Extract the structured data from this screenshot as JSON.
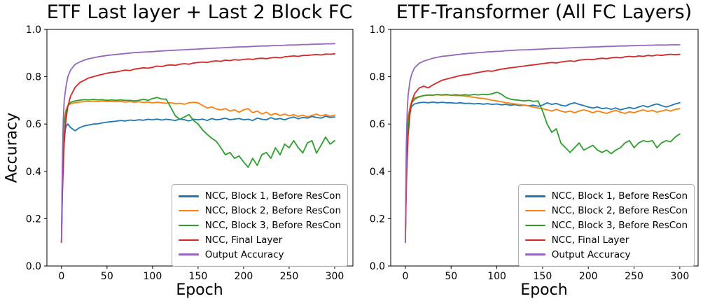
{
  "figure_title": "",
  "chart_data": [
    {
      "type": "line",
      "title": "ETF Last layer + Last 2 Block FC",
      "xlabel": "Epoch",
      "ylabel": "Accuracy",
      "xlim": [
        -16,
        320
      ],
      "ylim": [
        0.0,
        1.0
      ],
      "xticks": [
        0,
        50,
        100,
        150,
        200,
        250,
        300
      ],
      "yticks": [
        0.0,
        0.2,
        0.4,
        0.6,
        0.8,
        1.0
      ],
      "grid": false,
      "legend_position": "lower right",
      "epochs": [
        0,
        1,
        2,
        3,
        5,
        7,
        10,
        15,
        20,
        25,
        30,
        35,
        40,
        45,
        50,
        55,
        60,
        65,
        70,
        75,
        80,
        85,
        90,
        95,
        100,
        105,
        110,
        115,
        120,
        125,
        130,
        135,
        140,
        145,
        150,
        155,
        160,
        165,
        170,
        175,
        180,
        185,
        190,
        195,
        200,
        205,
        210,
        215,
        220,
        225,
        230,
        235,
        240,
        245,
        250,
        255,
        260,
        265,
        270,
        275,
        280,
        285,
        290,
        295,
        300
      ],
      "series": [
        {
          "name": "NCC, Block 1, Before ResCon",
          "color": "#1f77b4",
          "values": [
            0.1,
            0.35,
            0.48,
            0.55,
            0.59,
            0.6,
            0.585,
            0.572,
            0.585,
            0.592,
            0.596,
            0.6,
            0.601,
            0.605,
            0.608,
            0.61,
            0.612,
            0.615,
            0.613,
            0.617,
            0.615,
            0.618,
            0.616,
            0.62,
            0.618,
            0.621,
            0.617,
            0.62,
            0.618,
            0.615,
            0.621,
            0.618,
            0.613,
            0.62,
            0.618,
            0.621,
            0.615,
            0.623,
            0.618,
            0.62,
            0.625,
            0.618,
            0.621,
            0.623,
            0.618,
            0.62,
            0.615,
            0.625,
            0.62,
            0.618,
            0.627,
            0.62,
            0.623,
            0.618,
            0.625,
            0.63,
            0.622,
            0.628,
            0.625,
            0.632,
            0.628,
            0.625,
            0.633,
            0.628,
            0.63
          ]
        },
        {
          "name": "NCC, Block 2, Before ResCon",
          "color": "#ff7f0e",
          "values": [
            0.1,
            0.4,
            0.55,
            0.62,
            0.66,
            0.678,
            0.686,
            0.69,
            0.693,
            0.695,
            0.695,
            0.697,
            0.695,
            0.697,
            0.695,
            0.696,
            0.694,
            0.696,
            0.693,
            0.695,
            0.692,
            0.694,
            0.691,
            0.693,
            0.69,
            0.692,
            0.69,
            0.688,
            0.69,
            0.686,
            0.688,
            0.684,
            0.69,
            0.692,
            0.69,
            0.678,
            0.668,
            0.672,
            0.664,
            0.66,
            0.665,
            0.655,
            0.66,
            0.65,
            0.66,
            0.665,
            0.648,
            0.655,
            0.643,
            0.65,
            0.638,
            0.645,
            0.636,
            0.642,
            0.635,
            0.64,
            0.632,
            0.638,
            0.63,
            0.637,
            0.642,
            0.634,
            0.64,
            0.633,
            0.638
          ]
        },
        {
          "name": "NCC, Block 3, Before ResCon",
          "color": "#2ca02c",
          "values": [
            0.1,
            0.38,
            0.52,
            0.6,
            0.65,
            0.675,
            0.692,
            0.698,
            0.701,
            0.703,
            0.702,
            0.704,
            0.702,
            0.703,
            0.7,
            0.702,
            0.7,
            0.702,
            0.7,
            0.7,
            0.698,
            0.7,
            0.705,
            0.7,
            0.708,
            0.712,
            0.706,
            0.705,
            0.67,
            0.635,
            0.62,
            0.63,
            0.64,
            0.615,
            0.6,
            0.575,
            0.556,
            0.54,
            0.527,
            0.5,
            0.47,
            0.48,
            0.455,
            0.465,
            0.44,
            0.417,
            0.455,
            0.425,
            0.47,
            0.48,
            0.455,
            0.5,
            0.47,
            0.515,
            0.5,
            0.53,
            0.5,
            0.478,
            0.52,
            0.53,
            0.477,
            0.51,
            0.545,
            0.515,
            0.53
          ]
        },
        {
          "name": "NCC, Final Layer",
          "color": "#d62728",
          "values": [
            0.1,
            0.3,
            0.42,
            0.52,
            0.62,
            0.675,
            0.718,
            0.755,
            0.775,
            0.785,
            0.795,
            0.8,
            0.806,
            0.81,
            0.815,
            0.818,
            0.82,
            0.824,
            0.828,
            0.826,
            0.832,
            0.835,
            0.838,
            0.836,
            0.84,
            0.845,
            0.843,
            0.848,
            0.85,
            0.848,
            0.853,
            0.855,
            0.853,
            0.858,
            0.86,
            0.862,
            0.86,
            0.865,
            0.867,
            0.865,
            0.87,
            0.868,
            0.872,
            0.87,
            0.873,
            0.875,
            0.873,
            0.877,
            0.878,
            0.876,
            0.88,
            0.882,
            0.88,
            0.884,
            0.886,
            0.888,
            0.886,
            0.89,
            0.89,
            0.892,
            0.894,
            0.892,
            0.896,
            0.895,
            0.897
          ]
        },
        {
          "name": "Output Accuracy",
          "color": "#9467bd",
          "values": [
            0.1,
            0.45,
            0.62,
            0.7,
            0.76,
            0.8,
            0.828,
            0.852,
            0.862,
            0.87,
            0.876,
            0.88,
            0.884,
            0.887,
            0.89,
            0.892,
            0.894,
            0.896,
            0.898,
            0.9,
            0.902,
            0.903,
            0.904,
            0.905,
            0.906,
            0.908,
            0.909,
            0.91,
            0.911,
            0.912,
            0.913,
            0.914,
            0.915,
            0.916,
            0.917,
            0.918,
            0.919,
            0.92,
            0.921,
            0.922,
            0.923,
            0.924,
            0.925,
            0.926,
            0.926,
            0.927,
            0.928,
            0.929,
            0.93,
            0.93,
            0.931,
            0.932,
            0.932,
            0.933,
            0.934,
            0.934,
            0.935,
            0.936,
            0.936,
            0.937,
            0.938,
            0.938,
            0.939,
            0.939,
            0.94
          ]
        }
      ]
    },
    {
      "type": "line",
      "title": "ETF-Transformer (All FC Layers)",
      "xlabel": "Epoch",
      "ylabel": "",
      "xlim": [
        -16,
        320
      ],
      "ylim": [
        0.0,
        1.0
      ],
      "xticks": [
        0,
        50,
        100,
        150,
        200,
        250,
        300
      ],
      "yticks": [
        0.0,
        0.2,
        0.4,
        0.6,
        0.8,
        1.0
      ],
      "grid": false,
      "legend_position": "lower right",
      "epochs": [
        0,
        1,
        2,
        3,
        5,
        7,
        10,
        15,
        20,
        25,
        30,
        35,
        40,
        45,
        50,
        55,
        60,
        65,
        70,
        75,
        80,
        85,
        90,
        95,
        100,
        105,
        110,
        115,
        120,
        125,
        130,
        135,
        140,
        145,
        150,
        155,
        160,
        165,
        170,
        175,
        180,
        185,
        190,
        195,
        200,
        205,
        210,
        215,
        220,
        225,
        230,
        235,
        240,
        245,
        250,
        255,
        260,
        265,
        270,
        275,
        280,
        285,
        290,
        295,
        300
      ],
      "series": [
        {
          "name": "NCC, Block 1, Before ResCon",
          "color": "#1f77b4",
          "values": [
            0.1,
            0.4,
            0.55,
            0.62,
            0.66,
            0.675,
            0.685,
            0.69,
            0.692,
            0.69,
            0.693,
            0.69,
            0.692,
            0.69,
            0.69,
            0.688,
            0.69,
            0.687,
            0.688,
            0.685,
            0.687,
            0.684,
            0.686,
            0.683,
            0.685,
            0.681,
            0.683,
            0.68,
            0.682,
            0.678,
            0.68,
            0.677,
            0.68,
            0.675,
            0.68,
            0.69,
            0.683,
            0.687,
            0.68,
            0.676,
            0.685,
            0.69,
            0.683,
            0.678,
            0.672,
            0.668,
            0.672,
            0.665,
            0.668,
            0.662,
            0.668,
            0.66,
            0.665,
            0.67,
            0.665,
            0.672,
            0.678,
            0.672,
            0.68,
            0.685,
            0.678,
            0.672,
            0.678,
            0.685,
            0.69
          ]
        },
        {
          "name": "NCC, Block 2, Before ResCon",
          "color": "#ff7f0e",
          "values": [
            0.1,
            0.42,
            0.56,
            0.63,
            0.67,
            0.698,
            0.71,
            0.716,
            0.72,
            0.722,
            0.722,
            0.724,
            0.722,
            0.723,
            0.722,
            0.72,
            0.72,
            0.718,
            0.716,
            0.713,
            0.71,
            0.708,
            0.705,
            0.7,
            0.698,
            0.694,
            0.69,
            0.688,
            0.685,
            0.682,
            0.68,
            0.676,
            0.672,
            0.668,
            0.665,
            0.66,
            0.655,
            0.662,
            0.655,
            0.65,
            0.655,
            0.648,
            0.655,
            0.66,
            0.655,
            0.648,
            0.655,
            0.65,
            0.645,
            0.652,
            0.658,
            0.65,
            0.645,
            0.652,
            0.648,
            0.655,
            0.66,
            0.653,
            0.658,
            0.65,
            0.655,
            0.66,
            0.655,
            0.662,
            0.665
          ]
        },
        {
          "name": "NCC, Block 3, Before ResCon",
          "color": "#2ca02c",
          "values": [
            0.1,
            0.38,
            0.54,
            0.61,
            0.66,
            0.69,
            0.705,
            0.715,
            0.72,
            0.723,
            0.722,
            0.725,
            0.723,
            0.725,
            0.722,
            0.724,
            0.722,
            0.724,
            0.722,
            0.725,
            0.723,
            0.726,
            0.724,
            0.728,
            0.735,
            0.726,
            0.712,
            0.705,
            0.702,
            0.7,
            0.698,
            0.7,
            0.696,
            0.698,
            0.655,
            0.6,
            0.565,
            0.58,
            0.52,
            0.5,
            0.48,
            0.5,
            0.52,
            0.49,
            0.5,
            0.51,
            0.49,
            0.48,
            0.49,
            0.475,
            0.49,
            0.5,
            0.52,
            0.53,
            0.5,
            0.52,
            0.53,
            0.525,
            0.53,
            0.5,
            0.52,
            0.53,
            0.525,
            0.545,
            0.558
          ]
        },
        {
          "name": "NCC, Final Layer",
          "color": "#d62728",
          "values": [
            0.1,
            0.32,
            0.45,
            0.55,
            0.64,
            0.695,
            0.728,
            0.752,
            0.76,
            0.753,
            0.765,
            0.775,
            0.785,
            0.79,
            0.795,
            0.8,
            0.805,
            0.808,
            0.81,
            0.815,
            0.818,
            0.822,
            0.825,
            0.823,
            0.828,
            0.832,
            0.835,
            0.838,
            0.84,
            0.843,
            0.845,
            0.848,
            0.85,
            0.853,
            0.855,
            0.858,
            0.86,
            0.858,
            0.862,
            0.865,
            0.867,
            0.865,
            0.87,
            0.872,
            0.874,
            0.872,
            0.876,
            0.878,
            0.876,
            0.88,
            0.882,
            0.88,
            0.884,
            0.886,
            0.884,
            0.888,
            0.886,
            0.89,
            0.888,
            0.892,
            0.89,
            0.893,
            0.895,
            0.893,
            0.895
          ]
        },
        {
          "name": "Output Accuracy",
          "color": "#9467bd",
          "values": [
            0.1,
            0.5,
            0.65,
            0.72,
            0.78,
            0.812,
            0.838,
            0.856,
            0.866,
            0.872,
            0.878,
            0.882,
            0.886,
            0.888,
            0.89,
            0.893,
            0.895,
            0.897,
            0.899,
            0.9,
            0.902,
            0.903,
            0.905,
            0.906,
            0.907,
            0.908,
            0.91,
            0.911,
            0.912,
            0.913,
            0.914,
            0.914,
            0.915,
            0.916,
            0.917,
            0.918,
            0.919,
            0.92,
            0.92,
            0.921,
            0.922,
            0.923,
            0.924,
            0.924,
            0.925,
            0.926,
            0.926,
            0.927,
            0.928,
            0.928,
            0.929,
            0.93,
            0.93,
            0.931,
            0.931,
            0.932,
            0.932,
            0.933,
            0.933,
            0.934,
            0.934,
            0.934,
            0.935,
            0.935,
            0.935
          ]
        }
      ]
    }
  ]
}
